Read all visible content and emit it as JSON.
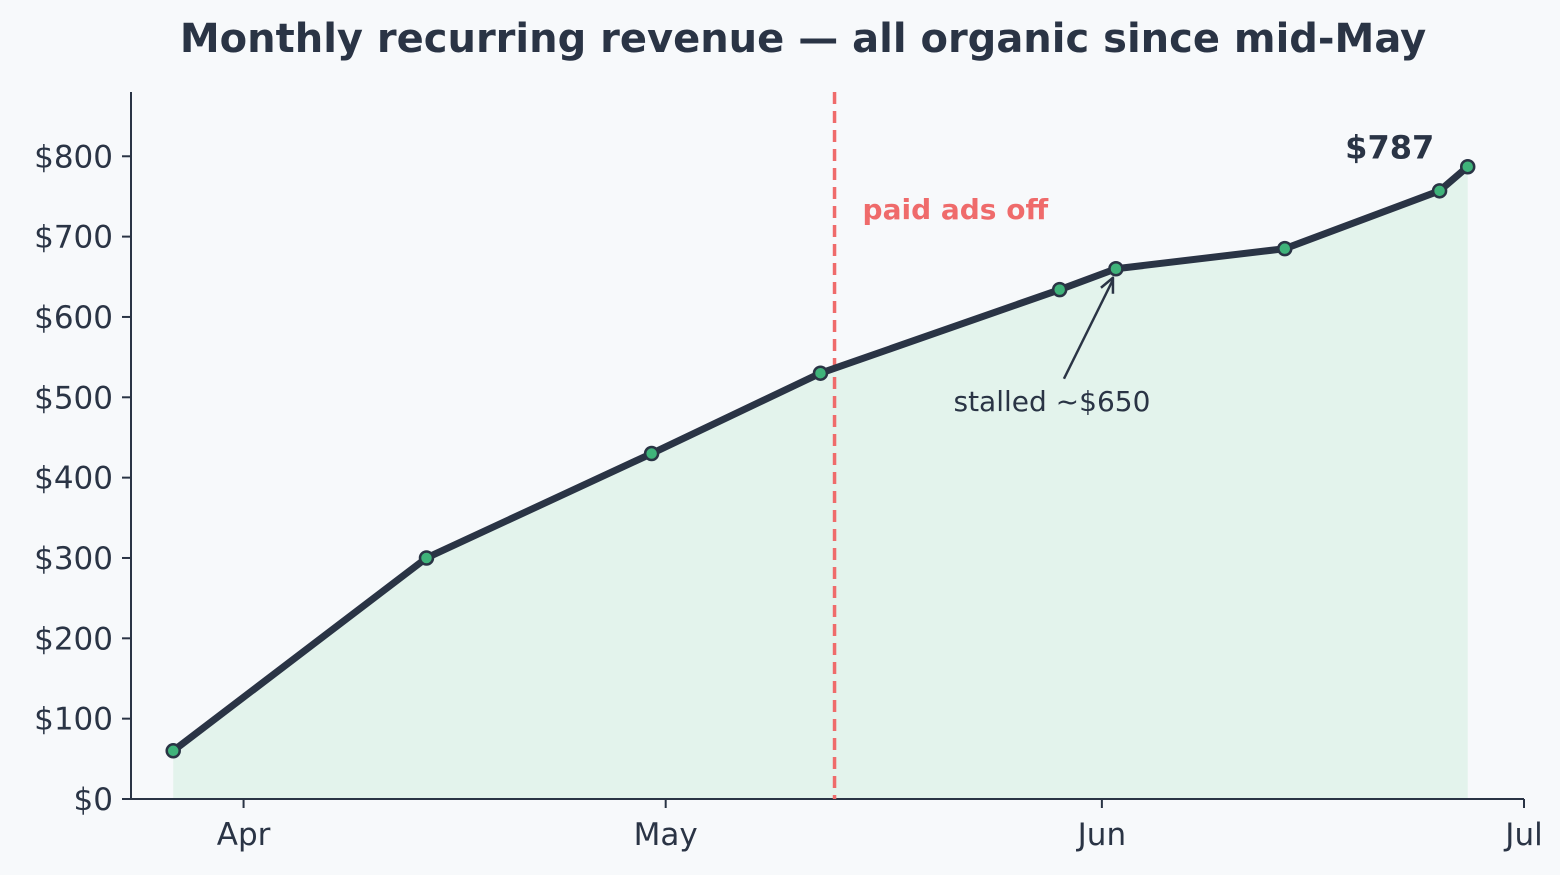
{
  "chart_data": {
    "type": "area",
    "title": "Monthly recurring revenue — all organic since mid-May",
    "xlabel": "",
    "ylabel": "",
    "x_axis": {
      "type": "date",
      "range": [
        "2024-03-24",
        "2024-07-01"
      ],
      "ticks": [
        {
          "date": "2024-04-01",
          "label": "Apr"
        },
        {
          "date": "2024-05-01",
          "label": "May"
        },
        {
          "date": "2024-06-01",
          "label": "Jun"
        },
        {
          "date": "2024-07-01",
          "label": "Jul"
        }
      ]
    },
    "y_axis": {
      "range": [
        0,
        880
      ],
      "ticks": [
        0,
        100,
        200,
        300,
        400,
        500,
        600,
        700,
        800
      ],
      "tick_labels": [
        "$0",
        "$100",
        "$200",
        "$300",
        "$400",
        "$500",
        "$600",
        "$700",
        "$800"
      ]
    },
    "grid": false,
    "legend": "none",
    "series": [
      {
        "x": [
          "2024-03-27",
          "2024-04-14",
          "2024-04-30",
          "2024-05-12",
          "2024-05-29",
          "2024-06-02",
          "2024-06-14",
          "2024-06-25",
          "2024-06-27"
        ],
        "values": [
          60,
          300,
          430,
          530,
          634,
          660,
          685,
          757,
          787
        ]
      }
    ],
    "annotations": [
      {
        "type": "vline",
        "x": "2024-05-13",
        "label": "paid ads off",
        "color": "#ef6b6b"
      },
      {
        "type": "arrow",
        "x": "2024-06-02",
        "y": 660,
        "label": "stalled ~$650"
      },
      {
        "type": "label",
        "x": "2024-06-27",
        "y": 787,
        "label": "$787"
      }
    ],
    "colors": {
      "line": "#2a3445",
      "marker_fill": "#3fb37a",
      "marker_edge": "#2a3445",
      "area_fill": "#e3f3ec",
      "vline": "#ef6b6b",
      "background": "#f7f9fb"
    }
  }
}
